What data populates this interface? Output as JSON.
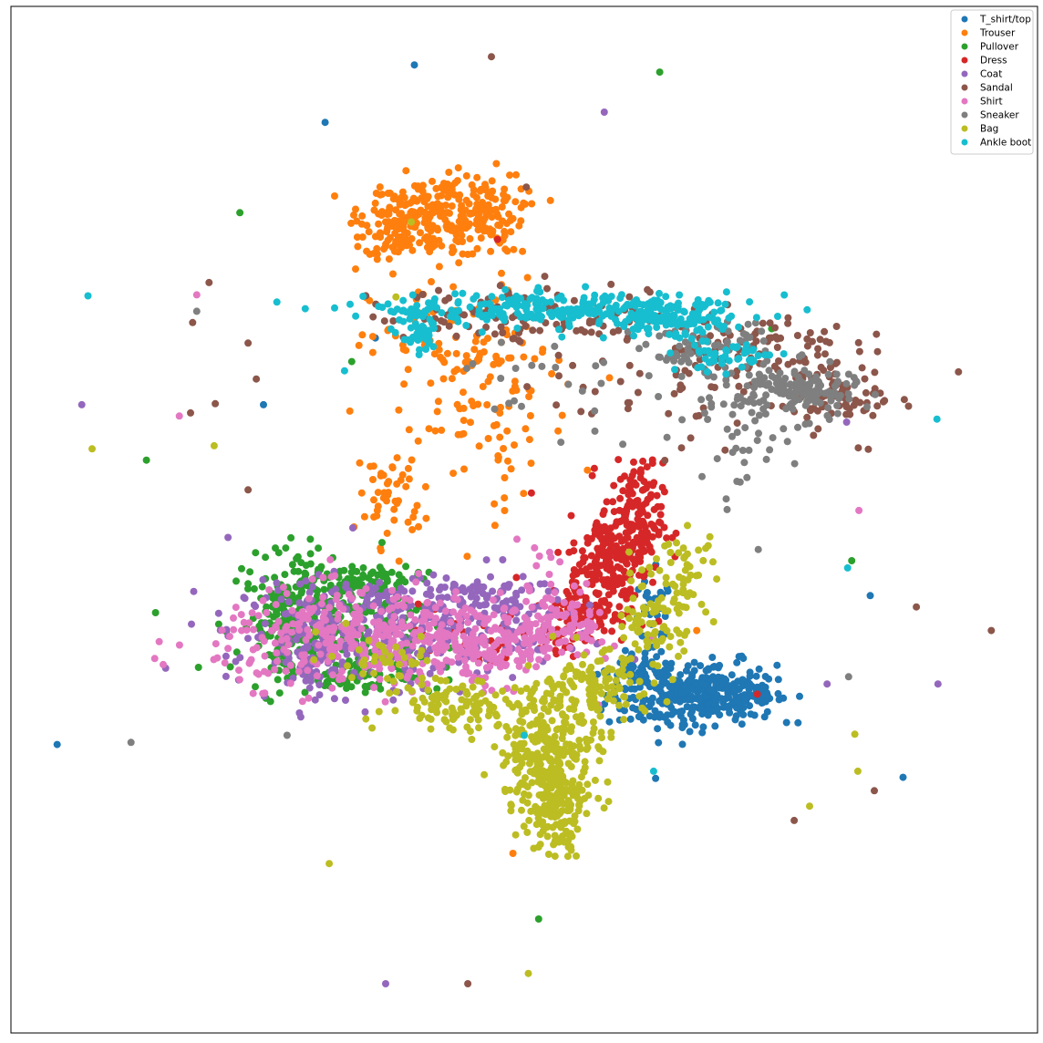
{
  "chart_data": {
    "type": "scatter",
    "title": "",
    "xlabel": "",
    "ylabel": "",
    "xlim": [
      0,
      100
    ],
    "ylim": [
      0,
      100
    ],
    "ticks": "none",
    "grid": false,
    "legend_position": "top-right",
    "series": [
      {
        "name": "T_shirt/top",
        "color": "#1f77b4",
        "points": [
          [
            39.3,
            94.3
          ],
          [
            30.6,
            88.7
          ],
          [
            35.5,
            67.7
          ],
          [
            24.6,
            61.2
          ],
          [
            4.5,
            28.1
          ],
          [
            62.8,
            24.8
          ],
          [
            86.9,
            24.9
          ],
          [
            83.7,
            42.6
          ]
        ],
        "clusters": [
          {
            "cx": 64.0,
            "cy": 33.0,
            "sx": 3.0,
            "sy": 1.8,
            "n": 160
          },
          {
            "cx": 68.5,
            "cy": 33.2,
            "sx": 3.0,
            "sy": 1.5,
            "n": 140
          },
          {
            "cx": 71.5,
            "cy": 32.8,
            "sx": 1.8,
            "sy": 1.0,
            "n": 70
          },
          {
            "cx": 60.5,
            "cy": 35.2,
            "sx": 1.2,
            "sy": 0.6,
            "n": 30
          },
          {
            "cx": 62.5,
            "cy": 39.5,
            "sx": 1.0,
            "sy": 2.5,
            "n": 40
          }
        ]
      },
      {
        "name": "Trouser",
        "color": "#ff7f0e",
        "points": [
          [
            48.9,
            17.5
          ],
          [
            66.8,
            39.2
          ],
          [
            46.5,
            57.9
          ]
        ],
        "clusters": [
          {
            "cx": 41.5,
            "cy": 79.5,
            "sx": 3.5,
            "sy": 2.0,
            "n": 200
          },
          {
            "cx": 37.5,
            "cy": 78.5,
            "sx": 1.5,
            "sy": 1.6,
            "n": 80
          },
          {
            "cx": 46.0,
            "cy": 80.0,
            "sx": 2.0,
            "sy": 2.0,
            "n": 80
          },
          {
            "cx": 44.0,
            "cy": 66.5,
            "sx": 4.5,
            "sy": 3.5,
            "n": 100
          },
          {
            "cx": 37.0,
            "cy": 52.5,
            "sx": 1.6,
            "sy": 2.5,
            "n": 50
          },
          {
            "cx": 46.5,
            "cy": 59.0,
            "sx": 4.5,
            "sy": 4.0,
            "n": 60
          }
        ]
      },
      {
        "name": "Pullover",
        "color": "#2ca02c",
        "points": [
          [
            22.3,
            79.9
          ],
          [
            13.2,
            55.8
          ],
          [
            63.2,
            93.6
          ],
          [
            33.2,
            65.4
          ],
          [
            74.1,
            68.6
          ],
          [
            81.9,
            46.0
          ],
          [
            51.4,
            11.1
          ]
        ],
        "clusters": [
          {
            "cx": 31.0,
            "cy": 40.5,
            "sx": 4.5,
            "sy": 2.8,
            "n": 260
          },
          {
            "cx": 26.5,
            "cy": 39.5,
            "sx": 0.9,
            "sy": 3.0,
            "n": 90
          },
          {
            "cx": 33.0,
            "cy": 44.2,
            "sx": 3.5,
            "sy": 0.8,
            "n": 70
          },
          {
            "cx": 34.0,
            "cy": 34.8,
            "sx": 4.0,
            "sy": 0.7,
            "n": 60
          }
        ]
      },
      {
        "name": "Dress",
        "color": "#d62728",
        "points": [
          [
            47.4,
            77.3
          ],
          [
            72.7,
            33.0
          ],
          [
            62.5,
            55.5
          ],
          [
            50.7,
            52.6
          ]
        ],
        "clusters": [
          {
            "cx": 60.5,
            "cy": 49.5,
            "sx": 1.5,
            "sy": 3.0,
            "n": 180
          },
          {
            "cx": 58.0,
            "cy": 45.5,
            "sx": 1.8,
            "sy": 2.5,
            "n": 120
          },
          {
            "cx": 56.0,
            "cy": 41.0,
            "sx": 2.0,
            "sy": 1.6,
            "n": 100
          },
          {
            "cx": 46.0,
            "cy": 38.5,
            "sx": 4.5,
            "sy": 1.5,
            "n": 40
          }
        ]
      },
      {
        "name": "Coat",
        "color": "#9467bd",
        "points": [
          [
            57.8,
            89.7
          ],
          [
            6.9,
            61.2
          ],
          [
            33.3,
            49.2
          ],
          [
            81.4,
            59.5
          ],
          [
            90.3,
            34.0
          ],
          [
            79.5,
            34.0
          ],
          [
            36.5,
            4.8
          ]
        ],
        "clusters": [
          {
            "cx": 36.0,
            "cy": 39.0,
            "sx": 7.5,
            "sy": 2.6,
            "n": 300
          },
          {
            "cx": 44.5,
            "cy": 42.5,
            "sx": 5.0,
            "sy": 1.0,
            "n": 100
          },
          {
            "cx": 29.0,
            "cy": 37.5,
            "sx": 1.5,
            "sy": 3.0,
            "n": 80
          }
        ]
      },
      {
        "name": "Sandal",
        "color": "#8c564b",
        "points": [
          [
            46.8,
            95.1
          ],
          [
            50.2,
            82.4
          ],
          [
            19.3,
            73.1
          ],
          [
            17.7,
            69.2
          ],
          [
            23.1,
            67.2
          ],
          [
            23.9,
            63.7
          ],
          [
            19.9,
            61.3
          ],
          [
            17.5,
            60.4
          ],
          [
            23.1,
            52.9
          ],
          [
            92.3,
            64.4
          ],
          [
            88.2,
            41.5
          ],
          [
            95.5,
            39.2
          ],
          [
            76.3,
            20.7
          ],
          [
            84.1,
            23.6
          ],
          [
            44.5,
            4.8
          ],
          [
            52.0,
            73.7
          ]
        ],
        "clusters": [
          {
            "cx": 52.5,
            "cy": 70.0,
            "sx": 9.0,
            "sy": 1.3,
            "n": 120
          },
          {
            "cx": 72.0,
            "cy": 66.5,
            "sx": 5.0,
            "sy": 1.8,
            "n": 100
          },
          {
            "cx": 81.0,
            "cy": 62.0,
            "sx": 2.5,
            "sy": 1.6,
            "n": 60
          },
          {
            "cx": 65.0,
            "cy": 61.0,
            "sx": 8.0,
            "sy": 3.0,
            "n": 40
          }
        ]
      },
      {
        "name": "Shirt",
        "color": "#e377c2",
        "points": [
          [
            18.1,
            71.9
          ],
          [
            16.4,
            60.1
          ],
          [
            82.6,
            50.9
          ],
          [
            28.4,
            32.3
          ]
        ],
        "clusters": [
          {
            "cx": 34.0,
            "cy": 38.5,
            "sx": 7.0,
            "sy": 2.3,
            "n": 350
          },
          {
            "cx": 47.0,
            "cy": 38.0,
            "sx": 4.0,
            "sy": 2.0,
            "n": 180
          },
          {
            "cx": 54.0,
            "cy": 40.0,
            "sx": 2.0,
            "sy": 1.6,
            "n": 70
          },
          {
            "cx": 52.0,
            "cy": 46.5,
            "sx": 1.2,
            "sy": 1.0,
            "n": 8
          }
        ]
      },
      {
        "name": "Sneaker",
        "color": "#7f7f7f",
        "points": [
          [
            18.1,
            70.3
          ],
          [
            11.7,
            28.3
          ],
          [
            26.9,
            29.0
          ],
          [
            72.8,
            47.1
          ],
          [
            81.6,
            34.7
          ]
        ],
        "clusters": [
          {
            "cx": 76.5,
            "cy": 62.5,
            "sx": 3.0,
            "sy": 1.3,
            "n": 150
          },
          {
            "cx": 68.0,
            "cy": 66.5,
            "sx": 3.0,
            "sy": 1.4,
            "n": 70
          },
          {
            "cx": 71.5,
            "cy": 57.5,
            "sx": 2.0,
            "sy": 3.0,
            "n": 40
          },
          {
            "cx": 56.0,
            "cy": 63.0,
            "sx": 7.0,
            "sy": 2.5,
            "n": 30
          }
        ]
      },
      {
        "name": "Bag",
        "color": "#bcbd22",
        "points": [
          [
            7.9,
            56.9
          ],
          [
            19.8,
            57.2
          ],
          [
            31.0,
            16.5
          ],
          [
            82.2,
            29.1
          ],
          [
            82.5,
            25.5
          ],
          [
            77.8,
            22.1
          ],
          [
            50.4,
            5.8
          ],
          [
            39.0,
            79.0
          ],
          [
            37.5,
            71.7
          ]
        ],
        "clusters": [
          {
            "cx": 52.5,
            "cy": 27.5,
            "sx": 2.5,
            "sy": 3.5,
            "n": 300
          },
          {
            "cx": 53.0,
            "cy": 22.0,
            "sx": 1.3,
            "sy": 2.2,
            "n": 120
          },
          {
            "cx": 56.5,
            "cy": 33.5,
            "sx": 2.5,
            "sy": 1.8,
            "n": 100
          },
          {
            "cx": 62.0,
            "cy": 39.5,
            "sx": 1.8,
            "sy": 2.8,
            "n": 80
          },
          {
            "cx": 66.0,
            "cy": 44.5,
            "sx": 1.3,
            "sy": 2.2,
            "n": 50
          },
          {
            "cx": 43.5,
            "cy": 32.0,
            "sx": 3.5,
            "sy": 1.3,
            "n": 100
          },
          {
            "cx": 36.0,
            "cy": 36.5,
            "sx": 3.0,
            "sy": 1.2,
            "n": 40
          }
        ]
      },
      {
        "name": "Ankle boot",
        "color": "#17becf",
        "points": [
          [
            7.5,
            71.8
          ],
          [
            32.5,
            64.5
          ],
          [
            90.2,
            59.8
          ],
          [
            81.5,
            45.3
          ],
          [
            62.6,
            25.5
          ],
          [
            50.0,
            29.0
          ]
        ],
        "clusters": [
          {
            "cx": 53.0,
            "cy": 70.5,
            "sx": 9.0,
            "sy": 0.8,
            "n": 250
          },
          {
            "cx": 64.0,
            "cy": 69.5,
            "sx": 3.0,
            "sy": 0.9,
            "n": 120
          },
          {
            "cx": 40.0,
            "cy": 67.8,
            "sx": 1.0,
            "sy": 1.0,
            "n": 40
          },
          {
            "cx": 70.0,
            "cy": 66.0,
            "sx": 2.5,
            "sy": 0.8,
            "n": 50
          }
        ]
      }
    ]
  }
}
